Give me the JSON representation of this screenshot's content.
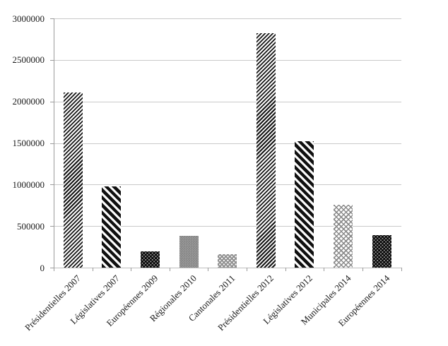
{
  "chart_data": {
    "type": "bar",
    "title": "",
    "xlabel": "",
    "ylabel": "",
    "categories": [
      "Présidentielles 2007",
      "Législatives 2007",
      "Européennes 2009",
      "Régionales 2010",
      "Cantonales 2011",
      "Présidentielles 2012",
      "Législatives 2012",
      "Municipales 2014",
      "Européennes 2014"
    ],
    "values": [
      2110000,
      980000,
      195000,
      380000,
      160000,
      2820000,
      1525000,
      755000,
      395000
    ],
    "patterns": [
      "fine-diagonal",
      "wide-diagonal",
      "dark-dotted",
      "gray-checker",
      "gray-dotted",
      "fine-diagonal",
      "wide-diagonal",
      "light-crosshatch",
      "dark-dotted"
    ],
    "ylim": [
      0,
      3000000
    ],
    "ytick_step": 500000,
    "ytick_labels": [
      "0",
      "500000",
      "1000000",
      "1500000",
      "2000000",
      "2500000",
      "3000000"
    ],
    "grid": true,
    "legend": false,
    "xlabel_rotation_deg": 45,
    "colors": {
      "ink": "#1a1a1a",
      "gridline": "#c9c9c9",
      "y_axis": "#9b9b9b",
      "x_axis": "#bdbdbd",
      "background": "#ffffff"
    }
  }
}
